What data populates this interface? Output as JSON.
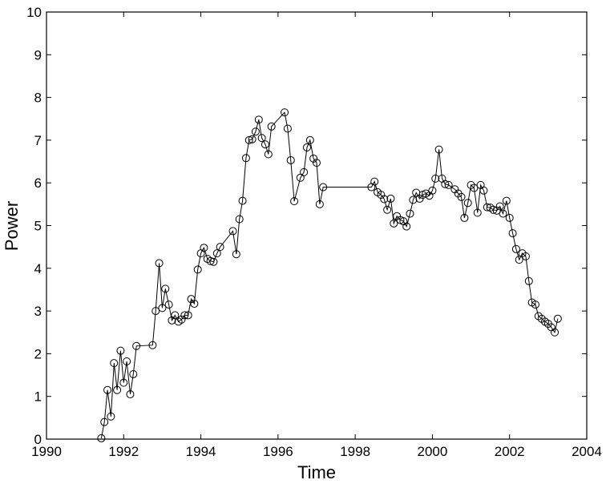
{
  "chart_data": {
    "type": "line",
    "title": "",
    "xlabel": "Time",
    "ylabel": "Power",
    "xlim": [
      1990,
      2004
    ],
    "ylim": [
      0,
      10
    ],
    "xticks": [
      1990,
      1992,
      1994,
      1996,
      1998,
      2000,
      2002,
      2004
    ],
    "yticks": [
      0,
      1,
      2,
      3,
      4,
      5,
      6,
      7,
      8,
      9,
      10
    ],
    "grid": false,
    "marker": "open-circle",
    "line_color": "#000000",
    "series": [
      {
        "x": [
          1991.42,
          1991.5,
          1991.58,
          1991.67,
          1991.75,
          1991.83,
          1991.92,
          1992.0,
          1992.08,
          1992.17,
          1992.25,
          1992.33,
          1992.75,
          1992.83,
          1992.92,
          1993.0,
          1993.08,
          1993.17,
          1993.25,
          1993.33,
          1993.42,
          1993.5,
          1993.58,
          1993.67,
          1993.75,
          1993.83,
          1993.92,
          1994.0,
          1994.08,
          1994.17,
          1994.25,
          1994.33,
          1994.42,
          1994.5,
          1994.83,
          1994.92,
          1995.0,
          1995.08,
          1995.17,
          1995.25,
          1995.33,
          1995.42,
          1995.5,
          1995.58,
          1995.67,
          1995.75,
          1995.83,
          1996.17,
          1996.25,
          1996.33,
          1996.42,
          1996.58,
          1996.67,
          1996.75,
          1996.83,
          1996.92,
          1997.0,
          1997.08,
          1997.17,
          1998.42,
          1998.5,
          1998.58,
          1998.67,
          1998.75,
          1998.83,
          1998.92,
          1999.0,
          1999.08,
          1999.17,
          1999.25,
          1999.33,
          1999.42,
          1999.5,
          1999.58,
          1999.67,
          1999.75,
          1999.83,
          1999.92,
          2000.0,
          2000.08,
          2000.17,
          2000.25,
          2000.33,
          2000.42,
          2000.58,
          2000.67,
          2000.75,
          2000.83,
          2000.92,
          2001.0,
          2001.08,
          2001.17,
          2001.25,
          2001.33,
          2001.42,
          2001.5,
          2001.58,
          2001.67,
          2001.75,
          2001.83,
          2001.92,
          2002.0,
          2002.08,
          2002.17,
          2002.25,
          2002.33,
          2002.42,
          2002.5,
          2002.58,
          2002.67,
          2002.75,
          2002.83,
          2002.92,
          2003.0,
          2003.08,
          2003.17,
          2003.25
        ],
        "y": [
          0.02,
          0.4,
          1.15,
          0.53,
          1.78,
          1.15,
          2.07,
          1.32,
          1.82,
          1.05,
          1.52,
          2.18,
          2.2,
          3.0,
          4.12,
          3.07,
          3.52,
          3.15,
          2.78,
          2.9,
          2.75,
          2.8,
          2.9,
          2.9,
          3.28,
          3.17,
          3.97,
          4.35,
          4.48,
          4.22,
          4.17,
          4.15,
          4.35,
          4.5,
          4.87,
          4.33,
          5.15,
          5.58,
          6.58,
          7.0,
          7.02,
          7.2,
          7.48,
          7.05,
          6.9,
          6.67,
          7.32,
          7.65,
          7.27,
          6.53,
          5.57,
          6.12,
          6.25,
          6.83,
          7.0,
          6.57,
          6.47,
          5.5,
          5.9,
          5.9,
          6.03,
          5.78,
          5.72,
          5.62,
          5.37,
          5.63,
          5.05,
          5.22,
          5.13,
          5.1,
          4.98,
          5.28,
          5.6,
          5.77,
          5.63,
          5.72,
          5.75,
          5.7,
          5.82,
          6.1,
          6.78,
          6.1,
          5.97,
          5.95,
          5.85,
          5.75,
          5.67,
          5.18,
          5.53,
          5.95,
          5.88,
          5.3,
          5.95,
          5.82,
          5.43,
          5.42,
          5.37,
          5.35,
          5.45,
          5.28,
          5.58,
          5.18,
          4.82,
          4.45,
          4.2,
          4.35,
          4.28,
          3.7,
          3.2,
          3.15,
          2.88,
          2.82,
          2.75,
          2.7,
          2.62,
          2.5,
          2.82
        ]
      }
    ]
  }
}
